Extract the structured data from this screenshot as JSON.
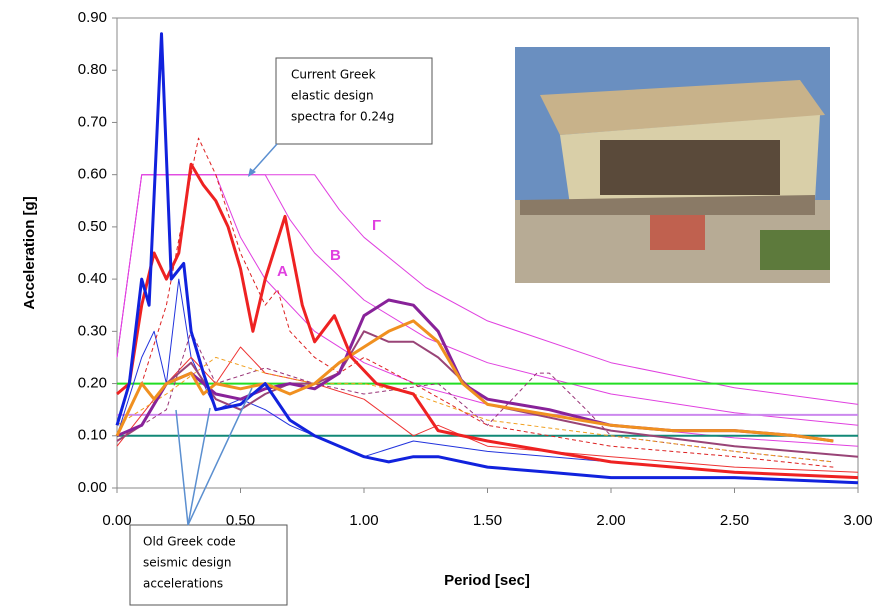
{
  "chart_data": {
    "type": "line",
    "x_label": "Period [sec]",
    "y_label": "Acceleration [g]",
    "xlim": [
      0,
      3
    ],
    "ylim": [
      0,
      0.9
    ],
    "xticks": [
      {
        "value": 0,
        "label": "0.00"
      },
      {
        "value": 0.5,
        "label": "0.50"
      },
      {
        "value": 1,
        "label": "1.00"
      },
      {
        "value": 1.5,
        "label": "1.50"
      },
      {
        "value": 2,
        "label": "2.00"
      },
      {
        "value": 2.5,
        "label": "2.50"
      },
      {
        "value": 3,
        "label": "3.00"
      }
    ],
    "yticks": [
      {
        "value": 0,
        "label": "0.00"
      },
      {
        "value": 0.1,
        "label": "0.10"
      },
      {
        "value": 0.2,
        "label": "0.20"
      },
      {
        "value": 0.3,
        "label": "0.30"
      },
      {
        "value": 0.4,
        "label": "0.40"
      },
      {
        "value": 0.5,
        "label": "0.50"
      },
      {
        "value": 0.6,
        "label": "0.60"
      },
      {
        "value": 0.7,
        "label": "0.70"
      },
      {
        "value": 0.8,
        "label": "0.80"
      },
      {
        "value": 0.9,
        "label": "0.90"
      }
    ],
    "annotations": [
      {
        "lines": [
          "Current Greek",
          "elastic design",
          "spectra for 0.24g"
        ]
      },
      {
        "lines": [
          "Old Greek code",
          "seismic design",
          "accelerations"
        ]
      }
    ],
    "series": [
      {
        "name": "A",
        "color": "#e040e0",
        "width": 1,
        "x": [
          0,
          0.1,
          0.4,
          0.5,
          0.6,
          0.8,
          1.0,
          1.25,
          1.5,
          2.0,
          2.5,
          3.0
        ],
        "values": [
          0.25,
          0.6,
          0.6,
          0.48,
          0.4,
          0.3,
          0.24,
          0.192,
          0.16,
          0.12,
          0.096,
          0.08
        ]
      },
      {
        "name": "B",
        "color": "#e040e0",
        "width": 1,
        "x": [
          0,
          0.1,
          0.6,
          0.7,
          0.8,
          1.0,
          1.25,
          1.5,
          2.0,
          2.5,
          3.0
        ],
        "values": [
          0.25,
          0.6,
          0.6,
          0.514,
          0.45,
          0.36,
          0.288,
          0.24,
          0.18,
          0.144,
          0.12
        ]
      },
      {
        "name": "Γ",
        "color": "#e040e0",
        "width": 1,
        "x": [
          0,
          0.1,
          0.8,
          0.9,
          1.0,
          1.25,
          1.5,
          2.0,
          2.5,
          3.0
        ],
        "values": [
          0.25,
          0.6,
          0.6,
          0.533,
          0.48,
          0.384,
          0.32,
          0.24,
          0.192,
          0.16
        ]
      },
      {
        "color": "#22dd22",
        "width": 2,
        "x": [
          0,
          3
        ],
        "values": [
          0.2,
          0.2
        ]
      },
      {
        "color": "#cc88ee",
        "width": 2,
        "x": [
          0,
          3
        ],
        "values": [
          0.14,
          0.14
        ]
      },
      {
        "color": "#118877",
        "width": 2,
        "x": [
          0,
          3
        ],
        "values": [
          0.1,
          0.1
        ]
      },
      {
        "color": "#2233dd",
        "width": 1,
        "x": [
          0,
          0.1,
          0.15,
          0.2,
          0.25,
          0.3,
          0.4,
          0.5,
          0.6,
          0.7,
          0.8,
          1.0,
          1.2,
          1.5,
          2.0,
          2.5,
          3.0
        ],
        "values": [
          0.1,
          0.25,
          0.3,
          0.2,
          0.4,
          0.25,
          0.15,
          0.17,
          0.15,
          0.12,
          0.1,
          0.06,
          0.09,
          0.07,
          0.05,
          0.03,
          0.02
        ]
      },
      {
        "color": "#ee3333",
        "width": 1,
        "x": [
          0,
          0.2,
          0.3,
          0.4,
          0.5,
          0.6,
          0.8,
          1.0,
          1.2,
          1.3,
          1.5,
          2.0,
          2.5,
          3.0
        ],
        "values": [
          0.08,
          0.2,
          0.25,
          0.2,
          0.27,
          0.22,
          0.2,
          0.17,
          0.1,
          0.12,
          0.08,
          0.06,
          0.04,
          0.03
        ]
      },
      {
        "color": "#dd2222",
        "width": 1,
        "dash": "4 3",
        "x": [
          0,
          0.1,
          0.2,
          0.3,
          0.33,
          0.4,
          0.5,
          0.6,
          0.65,
          0.7,
          0.8,
          0.9,
          1.0,
          1.2,
          1.5,
          2.0,
          2.5,
          2.9
        ],
        "values": [
          0.1,
          0.2,
          0.35,
          0.6,
          0.67,
          0.6,
          0.45,
          0.35,
          0.38,
          0.3,
          0.25,
          0.22,
          0.25,
          0.2,
          0.12,
          0.08,
          0.06,
          0.04
        ]
      },
      {
        "color": "#993377",
        "width": 1,
        "dash": "4 3",
        "x": [
          0,
          0.2,
          0.3,
          0.4,
          0.6,
          0.8,
          1.0,
          1.3,
          1.5,
          1.7,
          1.75,
          1.9,
          2.0,
          2.5,
          2.9
        ],
        "values": [
          0.09,
          0.15,
          0.3,
          0.2,
          0.23,
          0.2,
          0.18,
          0.2,
          0.12,
          0.22,
          0.22,
          0.15,
          0.1,
          0.07,
          0.05
        ]
      },
      {
        "color": "#f0a020",
        "width": 1,
        "dash": "4 3",
        "x": [
          0,
          0.2,
          0.4,
          0.6,
          0.8,
          1.0,
          1.2,
          1.5,
          2.0,
          2.5,
          2.9
        ],
        "values": [
          0.12,
          0.18,
          0.25,
          0.22,
          0.2,
          0.2,
          0.18,
          0.13,
          0.1,
          0.07,
          0.05
        ]
      },
      {
        "color": "#994477",
        "width": 2,
        "x": [
          0,
          0.1,
          0.2,
          0.3,
          0.4,
          0.5,
          0.6,
          0.7,
          0.8,
          0.9,
          1.0,
          1.1,
          1.2,
          1.3,
          1.5,
          2.0,
          2.5,
          3.0
        ],
        "values": [
          0.09,
          0.12,
          0.2,
          0.24,
          0.17,
          0.15,
          0.18,
          0.2,
          0.2,
          0.22,
          0.3,
          0.28,
          0.28,
          0.25,
          0.16,
          0.11,
          0.08,
          0.06
        ]
      },
      {
        "color": "#882299",
        "width": 3,
        "x": [
          0,
          0.1,
          0.2,
          0.3,
          0.4,
          0.5,
          0.6,
          0.7,
          0.8,
          0.9,
          1.0,
          1.1,
          1.2,
          1.3,
          1.4,
          1.5,
          1.75,
          2.0,
          2.25,
          2.5,
          2.75,
          2.9
        ],
        "values": [
          0.1,
          0.12,
          0.2,
          0.22,
          0.18,
          0.17,
          0.19,
          0.2,
          0.19,
          0.22,
          0.33,
          0.36,
          0.35,
          0.3,
          0.2,
          0.17,
          0.15,
          0.12,
          0.11,
          0.11,
          0.1,
          0.09
        ]
      },
      {
        "color": "#f09020",
        "width": 3,
        "x": [
          0,
          0.05,
          0.1,
          0.15,
          0.2,
          0.3,
          0.35,
          0.4,
          0.5,
          0.6,
          0.7,
          0.8,
          0.9,
          1.0,
          1.1,
          1.2,
          1.3,
          1.4,
          1.5,
          1.75,
          2.0,
          2.25,
          2.5,
          2.75,
          2.9
        ],
        "values": [
          0.1,
          0.15,
          0.2,
          0.17,
          0.2,
          0.22,
          0.18,
          0.2,
          0.19,
          0.2,
          0.18,
          0.2,
          0.24,
          0.27,
          0.3,
          0.32,
          0.28,
          0.2,
          0.16,
          0.14,
          0.12,
          0.11,
          0.11,
          0.1,
          0.09
        ]
      },
      {
        "color": "#ee2222",
        "width": 3,
        "x": [
          0,
          0.05,
          0.1,
          0.15,
          0.2,
          0.25,
          0.3,
          0.35,
          0.4,
          0.45,
          0.5,
          0.55,
          0.6,
          0.68,
          0.75,
          0.8,
          0.88,
          0.95,
          1.05,
          1.2,
          1.3,
          1.5,
          1.75,
          2.0,
          2.5,
          3.0
        ],
        "values": [
          0.18,
          0.2,
          0.35,
          0.45,
          0.4,
          0.45,
          0.62,
          0.58,
          0.55,
          0.5,
          0.42,
          0.3,
          0.4,
          0.52,
          0.35,
          0.28,
          0.33,
          0.25,
          0.2,
          0.18,
          0.11,
          0.09,
          0.07,
          0.05,
          0.03,
          0.02
        ]
      },
      {
        "color": "#1122dd",
        "width": 3,
        "x": [
          0,
          0.05,
          0.1,
          0.13,
          0.18,
          0.22,
          0.27,
          0.3,
          0.35,
          0.4,
          0.5,
          0.6,
          0.7,
          0.8,
          0.9,
          1.0,
          1.1,
          1.2,
          1.3,
          1.5,
          1.75,
          2.0,
          2.5,
          3.0
        ],
        "values": [
          0.12,
          0.2,
          0.4,
          0.35,
          0.87,
          0.4,
          0.43,
          0.3,
          0.22,
          0.15,
          0.16,
          0.2,
          0.13,
          0.1,
          0.08,
          0.06,
          0.05,
          0.06,
          0.06,
          0.04,
          0.03,
          0.02,
          0.02,
          0.01
        ]
      }
    ]
  }
}
